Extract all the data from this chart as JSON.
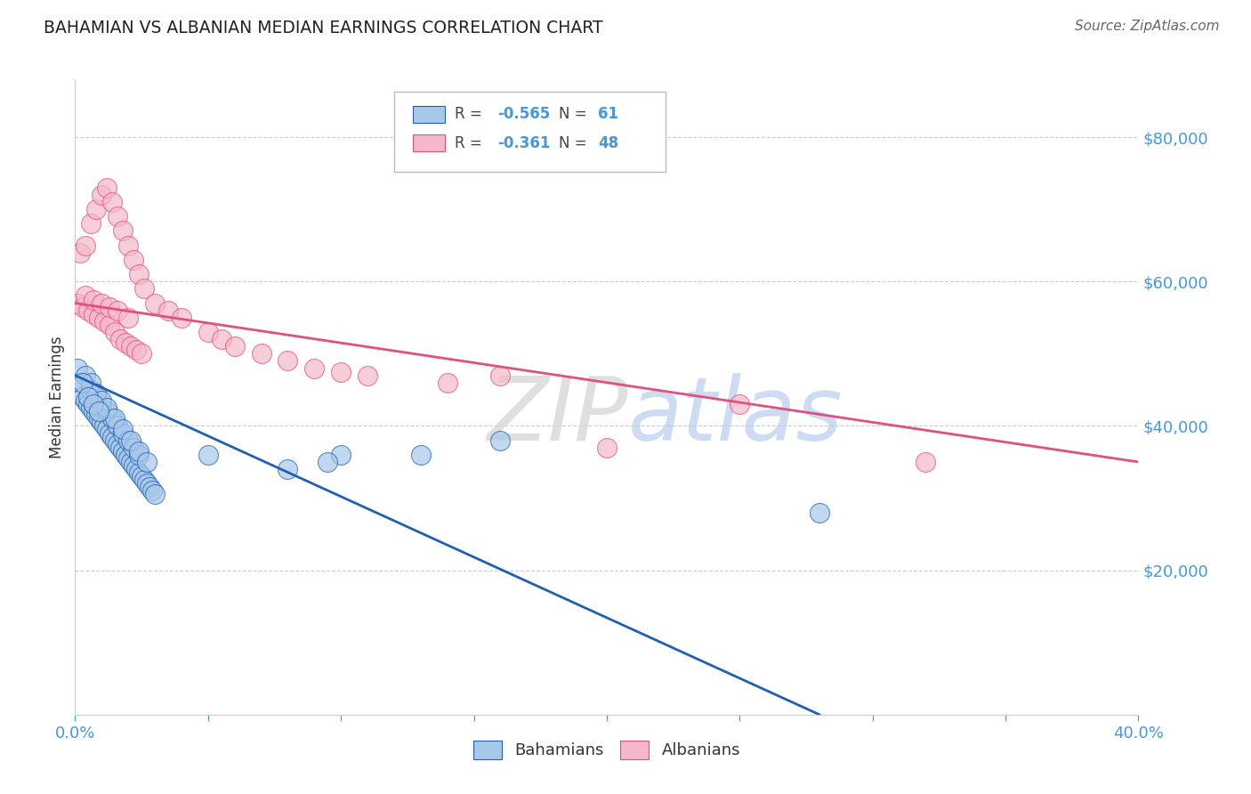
{
  "title": "BAHAMIAN VS ALBANIAN MEDIAN EARNINGS CORRELATION CHART",
  "source": "Source: ZipAtlas.com",
  "ylabel": "Median Earnings",
  "xlim": [
    0.0,
    0.4
  ],
  "ylim": [
    0,
    88000
  ],
  "yticks": [
    20000,
    40000,
    60000,
    80000
  ],
  "ytick_labels": [
    "$20,000",
    "$40,000",
    "$60,000",
    "$80,000"
  ],
  "xtick_show": [
    0.0,
    0.4
  ],
  "xtick_labels_show": [
    "0.0%",
    "40.0%"
  ],
  "xtick_minor": [
    0.05,
    0.1,
    0.15,
    0.2,
    0.25,
    0.3,
    0.35
  ],
  "grid_color": "#cccccc",
  "background_color": "#ffffff",
  "bahamian_color": "#a8c8ea",
  "albanian_color": "#f5b8c8",
  "bahamian_line_color": "#2060b0",
  "albanian_line_color": "#e05080",
  "r_bahamian": -0.565,
  "n_bahamian": 61,
  "r_albanian": -0.361,
  "n_albanian": 48,
  "legend_label_bahamian": "Bahamians",
  "legend_label_albanian": "Albanians",
  "tick_color": "#4499dd",
  "watermark_zip": "ZIP",
  "watermark_atlas": "atlas",
  "bahamian_x": [
    0.001,
    0.002,
    0.003,
    0.004,
    0.005,
    0.006,
    0.007,
    0.008,
    0.009,
    0.01,
    0.011,
    0.012,
    0.013,
    0.014,
    0.015,
    0.016,
    0.017,
    0.018,
    0.019,
    0.02,
    0.021,
    0.022,
    0.023,
    0.024,
    0.025,
    0.026,
    0.027,
    0.028,
    0.029,
    0.03,
    0.006,
    0.008,
    0.01,
    0.012,
    0.014,
    0.016,
    0.018,
    0.02,
    0.022,
    0.024,
    0.004,
    0.006,
    0.008,
    0.01,
    0.012,
    0.015,
    0.018,
    0.021,
    0.024,
    0.027,
    0.003,
    0.005,
    0.007,
    0.009,
    0.05,
    0.08,
    0.1,
    0.16,
    0.13,
    0.28,
    0.095
  ],
  "bahamian_y": [
    48000,
    46000,
    44000,
    43500,
    43000,
    42500,
    42000,
    41500,
    41000,
    40500,
    40000,
    39500,
    39000,
    38500,
    38000,
    37500,
    37000,
    36500,
    36000,
    35500,
    35000,
    34500,
    34000,
    33500,
    33000,
    32500,
    32000,
    31500,
    31000,
    30500,
    45000,
    44000,
    43000,
    42000,
    41000,
    40000,
    39000,
    38000,
    37000,
    36000,
    47000,
    46000,
    44500,
    43500,
    42500,
    41000,
    39500,
    38000,
    36500,
    35000,
    46000,
    44000,
    43000,
    42000,
    36000,
    34000,
    36000,
    38000,
    36000,
    28000,
    35000
  ],
  "albanian_x": [
    0.001,
    0.003,
    0.005,
    0.007,
    0.009,
    0.011,
    0.013,
    0.015,
    0.017,
    0.019,
    0.021,
    0.023,
    0.025,
    0.002,
    0.004,
    0.006,
    0.008,
    0.01,
    0.012,
    0.014,
    0.016,
    0.018,
    0.02,
    0.022,
    0.024,
    0.026,
    0.03,
    0.035,
    0.04,
    0.05,
    0.055,
    0.06,
    0.07,
    0.08,
    0.09,
    0.1,
    0.11,
    0.14,
    0.16,
    0.2,
    0.25,
    0.32,
    0.004,
    0.007,
    0.01,
    0.013,
    0.016,
    0.02
  ],
  "albanian_y": [
    57000,
    56500,
    56000,
    55500,
    55000,
    54500,
    54000,
    53000,
    52000,
    51500,
    51000,
    50500,
    50000,
    64000,
    65000,
    68000,
    70000,
    72000,
    73000,
    71000,
    69000,
    67000,
    65000,
    63000,
    61000,
    59000,
    57000,
    56000,
    55000,
    53000,
    52000,
    51000,
    50000,
    49000,
    48000,
    47500,
    47000,
    46000,
    47000,
    37000,
    43000,
    35000,
    58000,
    57500,
    57000,
    56500,
    56000,
    55000
  ]
}
